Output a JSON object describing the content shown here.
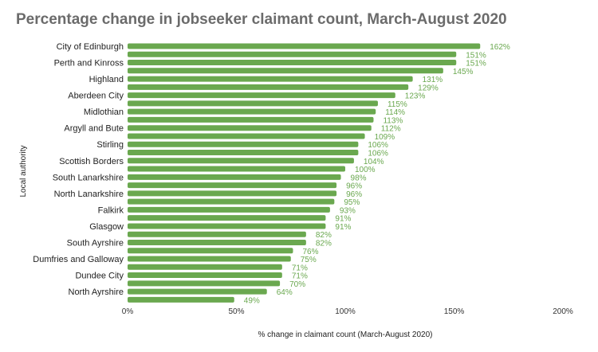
{
  "chart_data": {
    "type": "bar",
    "orientation": "horizontal",
    "title": "Percentage change in jobseeker claimant count, March-August 2020",
    "xlabel": "% change in claimant count (March-August 2020)",
    "ylabel": "Local authority",
    "xlim": [
      0,
      200
    ],
    "x_ticks": [
      0,
      50,
      100,
      150,
      200
    ],
    "x_tick_labels": [
      "0%",
      "50%",
      "100%",
      "150%",
      "200%"
    ],
    "categories": [
      "City of Edinburgh",
      "",
      "Perth and Kinross",
      "",
      "Highland",
      "",
      "Aberdeen City",
      "",
      "Midlothian",
      "",
      "Argyll and Bute",
      "",
      "Stirling",
      "",
      "Scottish Borders",
      "",
      "South Lanarkshire",
      "",
      "North Lanarkshire",
      "",
      "Falkirk",
      "",
      "Glasgow",
      "",
      "South Ayrshire",
      "",
      "Dumfries and Galloway",
      "",
      "Dundee City",
      "",
      "North Ayrshire",
      ""
    ],
    "values": [
      162,
      151,
      151,
      145,
      131,
      129,
      123,
      115,
      114,
      113,
      112,
      109,
      106,
      106,
      104,
      100,
      98,
      96,
      96,
      95,
      93,
      91,
      91,
      82,
      82,
      76,
      75,
      71,
      71,
      70,
      64,
      49
    ],
    "value_labels": [
      "162%",
      "151%",
      "151%",
      "145%",
      "131%",
      "129%",
      "123%",
      "115%",
      "114%",
      "113%",
      "112%",
      "109%",
      "106%",
      "106%",
      "104%",
      "100%",
      "98%",
      "96%",
      "96%",
      "95%",
      "93%",
      "91%",
      "91%",
      "82%",
      "82%",
      "76%",
      "75%",
      "71%",
      "71%",
      "70%",
      "64%",
      "49%"
    ],
    "bar_color": "#6aa84f",
    "grid": false,
    "legend": "none"
  }
}
